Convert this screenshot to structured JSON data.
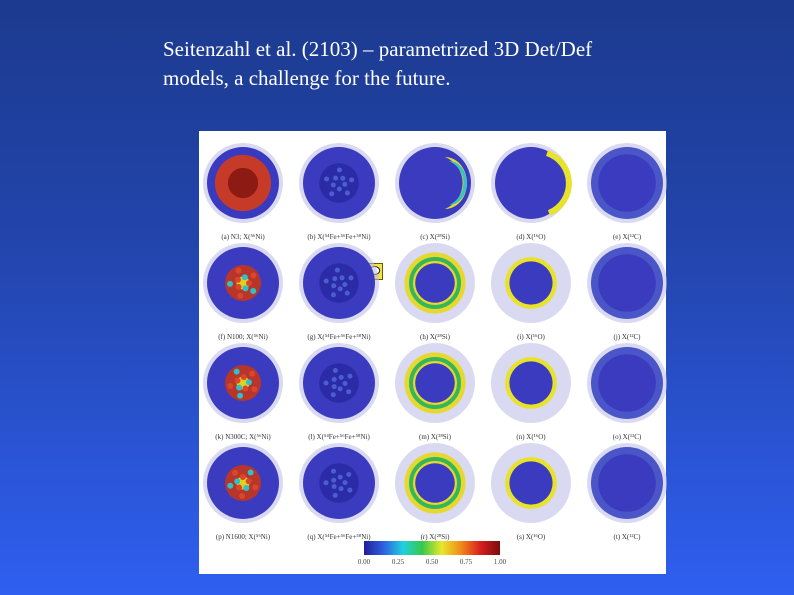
{
  "slide": {
    "title_line1": "Seitenzahl et al. (2103) – parametrized 3D Det/Def",
    "title_line2": "models, a challenge for the future."
  },
  "figure": {
    "rows": [
      [
        {
          "caption": "(a) N3; X(⁵⁶Ni)",
          "style": "red"
        },
        {
          "caption": "(b) X(⁵⁴Fe+⁵⁶Fe+⁵⁸Ni)",
          "style": "blue"
        },
        {
          "caption": "(c) X(²⁸Si)",
          "style": "crescent"
        },
        {
          "caption": "(d) X(¹⁶O)",
          "style": "rim-yellow"
        },
        {
          "caption": "(e) X(¹²C)",
          "style": "plain"
        }
      ],
      [
        {
          "caption": "(f) N100; X(⁵⁶Ni)",
          "style": "red-patchy"
        },
        {
          "caption": "(g) X(⁵⁴Fe+⁵⁶Fe+⁵⁸Ni)",
          "style": "blue"
        },
        {
          "caption": "(h) X(²⁸Si)",
          "style": "ring-mixed"
        },
        {
          "caption": "(i) X(¹⁶O)",
          "style": "ring-yellow"
        },
        {
          "caption": "(j) X(¹²C)",
          "style": "plain"
        }
      ],
      [
        {
          "caption": "(k) N300C; X(⁵⁶Ni)",
          "style": "red-patchy"
        },
        {
          "caption": "(l) X(⁵⁴Fe+⁵⁶Fe+⁵⁸Ni)",
          "style": "blue"
        },
        {
          "caption": "(m) X(²⁸Si)",
          "style": "ring-mixed"
        },
        {
          "caption": "(n) X(¹⁶O)",
          "style": "ring-yellow"
        },
        {
          "caption": "(o) X(¹²C)",
          "style": "plain"
        }
      ],
      [
        {
          "caption": "(p) N1600; X(⁵⁶Ni)",
          "style": "red-patchy"
        },
        {
          "caption": "(q) X(⁵⁴Fe+⁵⁶Fe+⁵⁸Ni)",
          "style": "blue"
        },
        {
          "caption": "(r) X(²⁸Si)",
          "style": "ring-mixed"
        },
        {
          "caption": "(s) X(¹⁶O)",
          "style": "ring-yellow"
        },
        {
          "caption": "(t) X(¹²C)",
          "style": "plain"
        }
      ]
    ],
    "colorbar": {
      "ticks": [
        "0.00",
        "0.25",
        "0.50",
        "0.75",
        "1.00"
      ],
      "colors": [
        "#1f1f9a",
        "#2f5fe0",
        "#1fd0e0",
        "#39c84a",
        "#e8e82a",
        "#f08a1a",
        "#d81e1e",
        "#7a0d0d"
      ]
    }
  }
}
